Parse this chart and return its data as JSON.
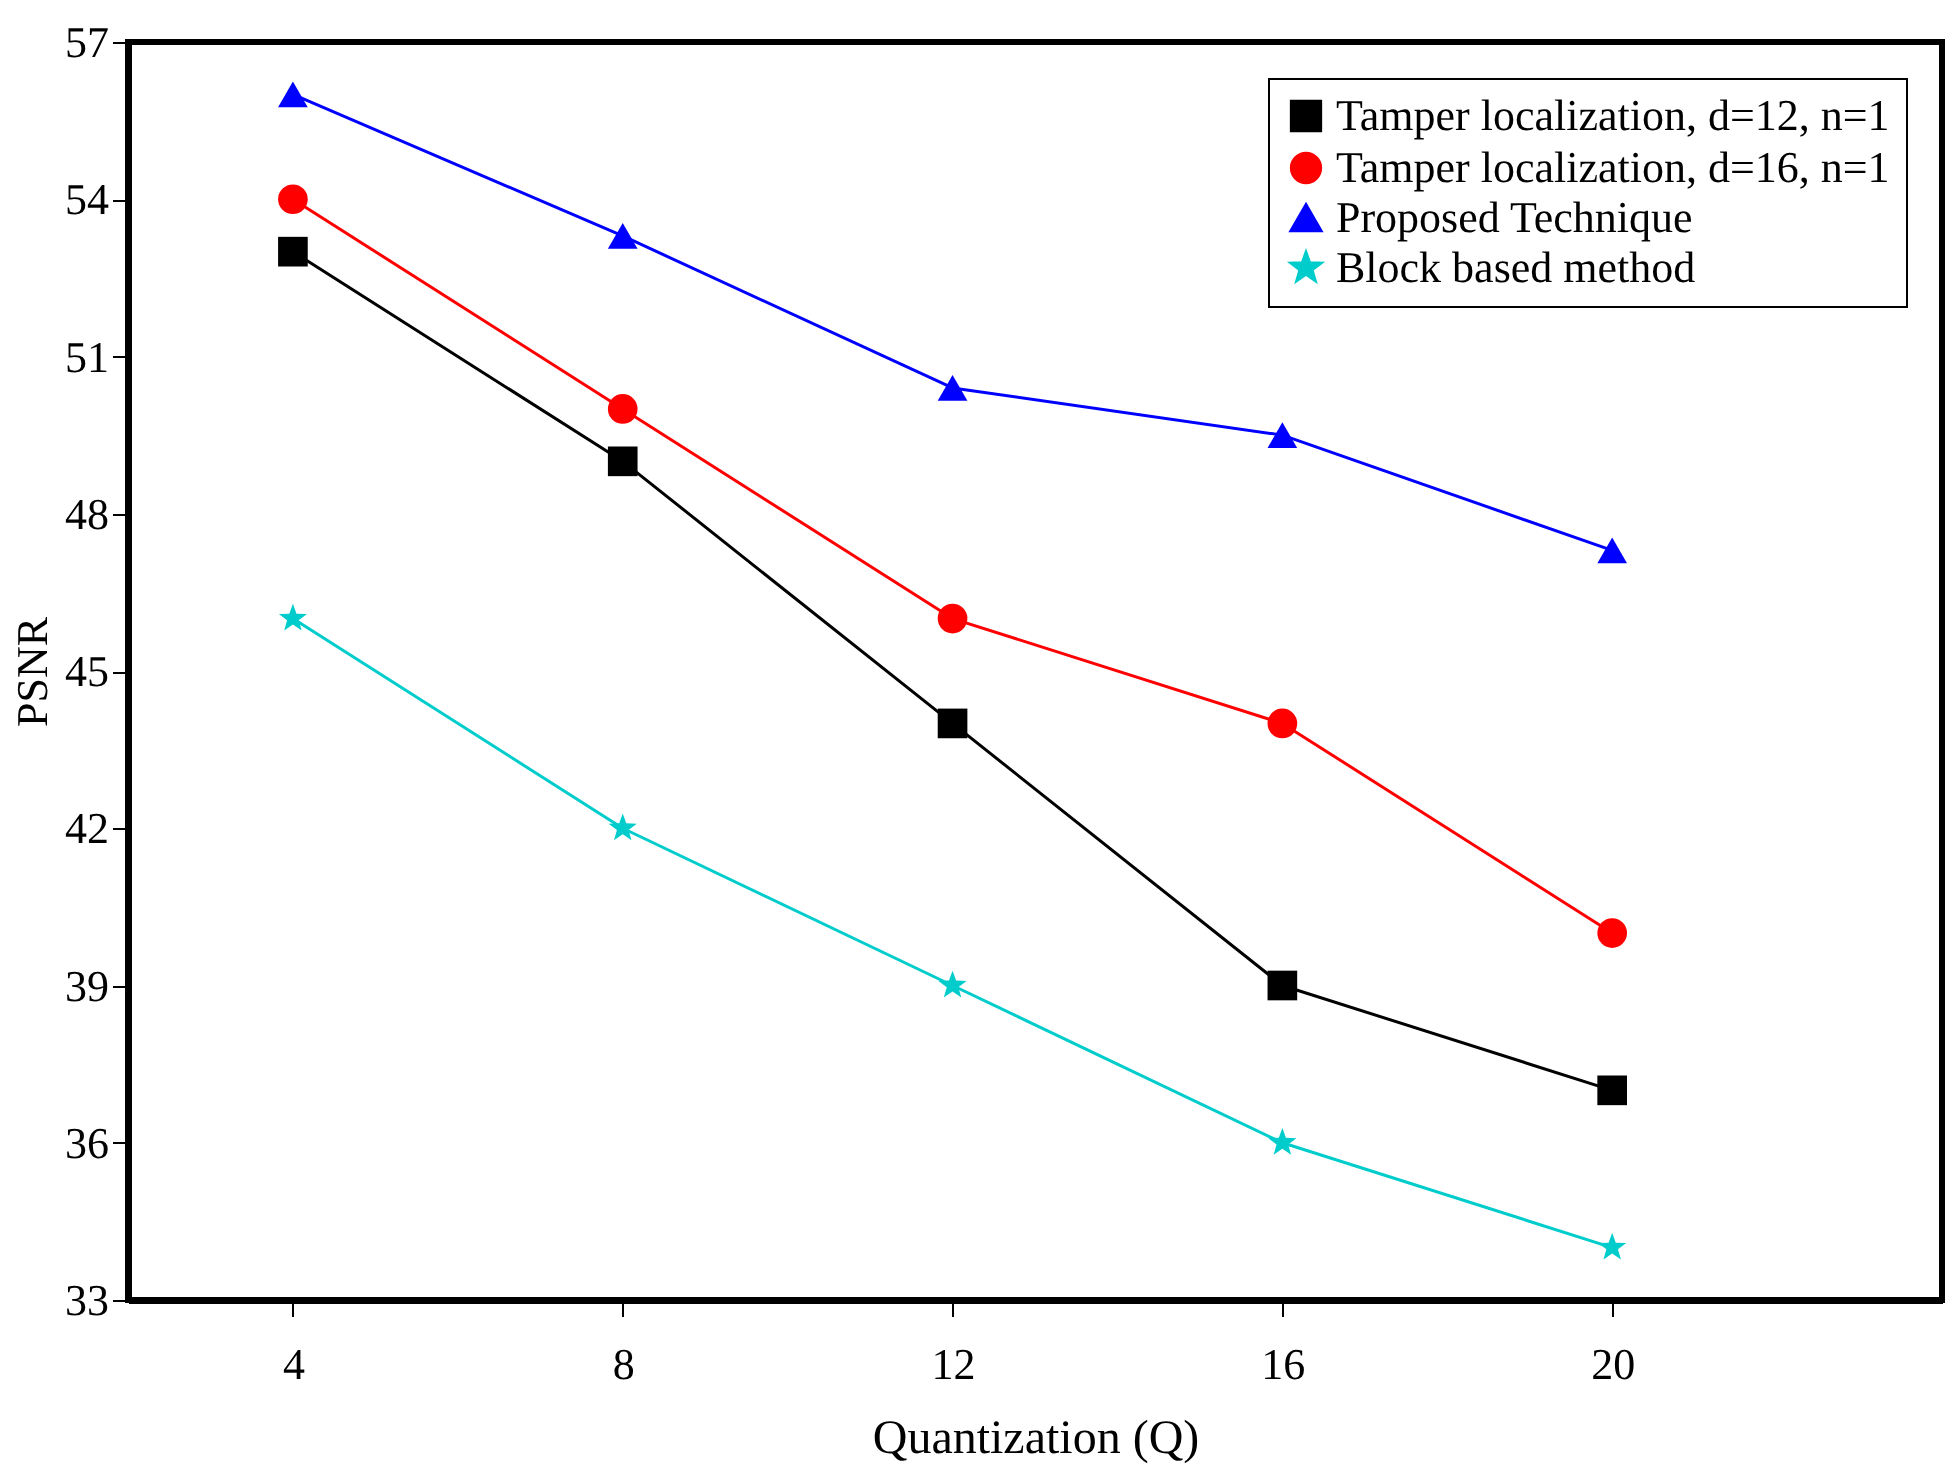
{
  "chart_data": {
    "type": "line",
    "xlabel": "Quantization (Q)",
    "ylabel": "PSNR",
    "x": [
      4,
      8,
      12,
      16,
      20
    ],
    "xlim": [
      2,
      24
    ],
    "xticks": [
      4,
      8,
      12,
      16,
      20
    ],
    "ylim": [
      33,
      57
    ],
    "yticks": [
      33,
      36,
      39,
      42,
      45,
      48,
      51,
      54,
      57
    ],
    "grid": false,
    "legend": "top right",
    "line_style": "solid",
    "series": [
      {
        "name": "Tamper localization, d=12, n=1",
        "color": "#000000",
        "marker": "square",
        "values": [
          53,
          49,
          44,
          39,
          37
        ]
      },
      {
        "name": "Tamper localization, d=16, n=1",
        "color": "#ff0000",
        "marker": "circle",
        "values": [
          54,
          50,
          46,
          44,
          40
        ]
      },
      {
        "name": "Proposed Technique",
        "color": "#0000ff",
        "marker": "triangle",
        "values": [
          56,
          53.3,
          50.4,
          49.5,
          47.3
        ]
      },
      {
        "name": "Block based method",
        "color": "#00cccc",
        "marker": "star",
        "values": [
          46,
          42,
          39,
          36,
          34
        ]
      }
    ]
  }
}
